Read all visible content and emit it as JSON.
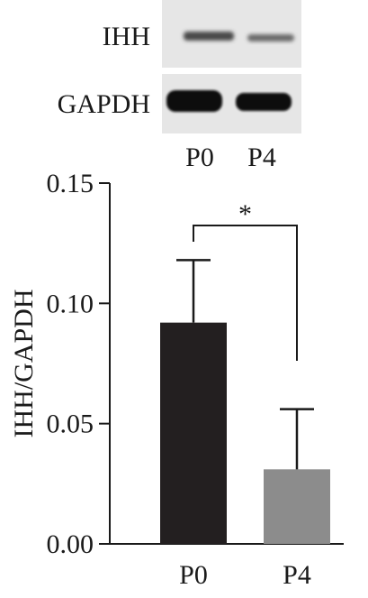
{
  "blot": {
    "rows": [
      {
        "label": "IHH"
      },
      {
        "label": "GAPDH"
      }
    ],
    "lanes": [
      "P0",
      "P4"
    ]
  },
  "chart_data": {
    "type": "bar",
    "categories": [
      "P0",
      "P4"
    ],
    "series": [
      {
        "values": [
          0.092,
          0.031
        ],
        "errors": [
          0.026,
          0.025
        ],
        "colors": [
          "#231f20",
          "#8c8c8c"
        ]
      }
    ],
    "ylabel": "IHH/GAPDH",
    "ylim": [
      0,
      0.15
    ],
    "yticks": [
      "0.00",
      "0.05",
      "0.10",
      "0.15"
    ],
    "significance": {
      "between": [
        "P0",
        "P4"
      ],
      "label": "*"
    },
    "grid": false
  }
}
